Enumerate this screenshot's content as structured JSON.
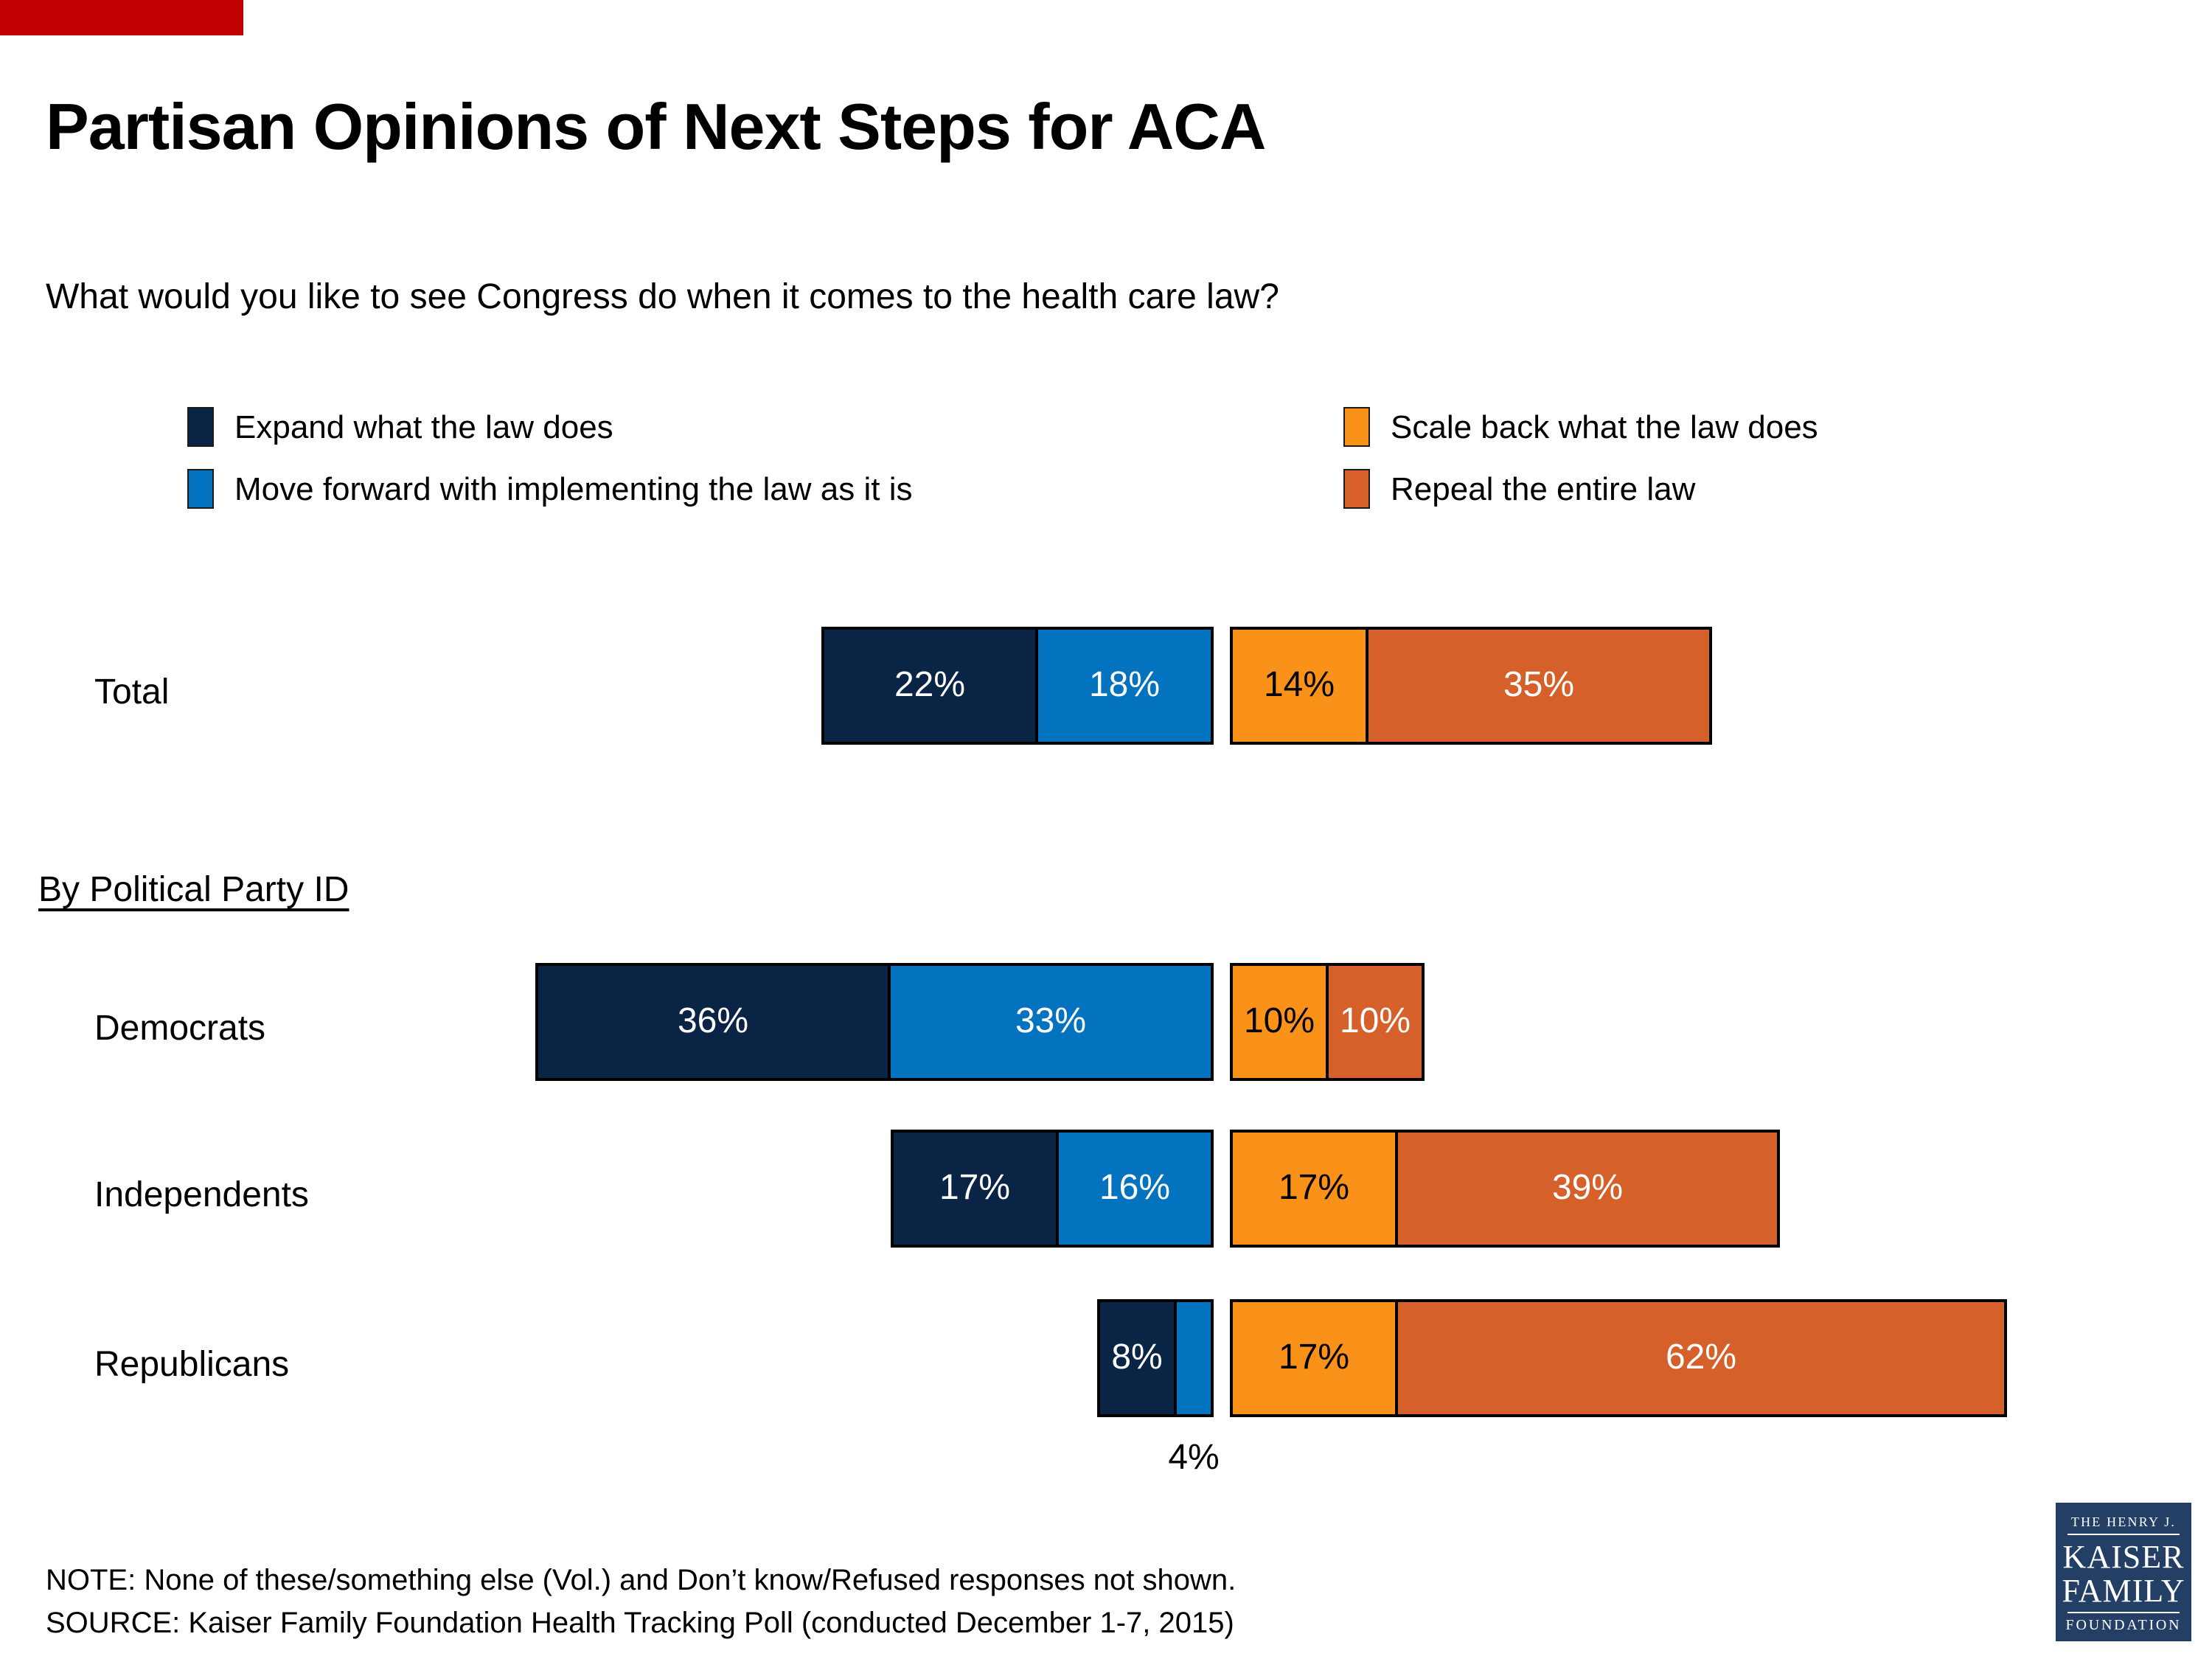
{
  "colors": {
    "corner_bar": "#C00000",
    "expand": "#0A2446",
    "move_forward": "#0373BF",
    "scale_back": "#FA9119",
    "repeal": "#D5602A",
    "logo_background": "#243F66"
  },
  "title": "Partisan Opinions of Next Steps for ACA",
  "subtitle": "What would you like to see Congress do when it comes to the health care law?",
  "legend": [
    {
      "label": "Expand what the law does",
      "color": "expand"
    },
    {
      "label": "Move forward with implementing the law as it is",
      "color": "move_forward"
    },
    {
      "label": "Scale back what the law does",
      "color": "scale_back"
    },
    {
      "label": "Repeal the entire law",
      "color": "repeal"
    }
  ],
  "section_heading": "By Political Party ID",
  "chart_data": {
    "type": "bar",
    "subtype": "horizontal-diverging-stacked",
    "categories": [
      "Total",
      "Democrats",
      "Independents",
      "Republicans"
    ],
    "series": [
      {
        "name": "Expand what the law does",
        "color": "expand",
        "label_color": "#FFFFFF",
        "side": "left",
        "values": [
          22,
          36,
          17,
          8
        ]
      },
      {
        "name": "Move forward with implementing the law as it is",
        "color": "move_forward",
        "label_color": "#FFFFFF",
        "side": "left",
        "values": [
          18,
          33,
          16,
          4
        ]
      },
      {
        "name": "Scale back what the law does",
        "color": "scale_back",
        "label_color": "#000000",
        "side": "right",
        "values": [
          14,
          10,
          17,
          17
        ]
      },
      {
        "name": "Repeal the entire law",
        "color": "repeal",
        "label_color": "#FFFFFF",
        "side": "right",
        "values": [
          35,
          10,
          39,
          62
        ]
      }
    ],
    "unit": "%",
    "outside_labels": [
      {
        "category": "Republicans",
        "series_index": 1,
        "text": "4%",
        "position": "below"
      }
    ],
    "legend_position": "top",
    "axes": "none",
    "grid": false
  },
  "note": "NOTE: None of these/something else (Vol.) and Don’t know/Refused responses not shown.",
  "source": "SOURCE: Kaiser Family Foundation Health Tracking Poll (conducted December 1-7, 2015)",
  "logo": {
    "line1": "THE HENRY J.",
    "line2": "KAISER",
    "line3": "FAMILY",
    "line4": "FOUNDATION"
  }
}
